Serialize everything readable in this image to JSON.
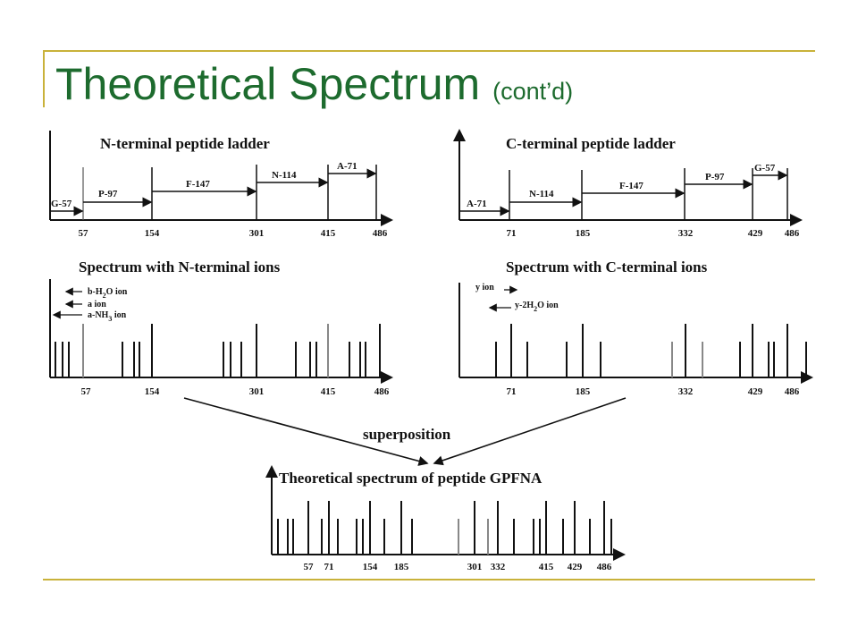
{
  "slide": {
    "title_main": "Theoretical Spectrum",
    "title_sub": "(cont’d)",
    "accent_color": "#1d6b2e",
    "rule_color": "#c9b23a"
  },
  "diagram": {
    "panels": {
      "n_ladder": {
        "title": "N-terminal peptide ladder",
        "ticks": [
          "57",
          "154",
          "301",
          "415",
          "486"
        ],
        "segments": [
          "G-57",
          "P-97",
          "F-147",
          "N-114",
          "A-71"
        ]
      },
      "c_ladder": {
        "title": "C-terminal peptide ladder",
        "ticks": [
          "71",
          "185",
          "332",
          "429",
          "486"
        ],
        "segments": [
          "A-71",
          "N-114",
          "F-147",
          "P-97",
          "G-57"
        ]
      },
      "n_spectrum": {
        "title": "Spectrum with N-terminal ions",
        "ticks": [
          "57",
          "154",
          "301",
          "415",
          "486"
        ],
        "legend": [
          {
            "main": "b-H",
            "sub": "2",
            "tail": "O  ion"
          },
          {
            "main": "a ion",
            "sub": "",
            "tail": ""
          },
          {
            "main": "a-NH",
            "sub": "3",
            "tail": "  ion"
          }
        ]
      },
      "c_spectrum": {
        "title": "Spectrum with C-terminal ions",
        "ticks": [
          "71",
          "185",
          "332",
          "429",
          "486"
        ],
        "legend": [
          {
            "main": "y ion",
            "sub": "",
            "tail": ""
          },
          {
            "main": "y-2H",
            "sub": "2",
            "tail": "O ion"
          }
        ]
      },
      "combined": {
        "title": "Theoretical spectrum of peptide GPFNA",
        "ticks": [
          "57",
          "71",
          "154",
          "185",
          "301",
          "332",
          "415",
          "429",
          "486"
        ]
      }
    },
    "superposition_label": "superposition"
  }
}
